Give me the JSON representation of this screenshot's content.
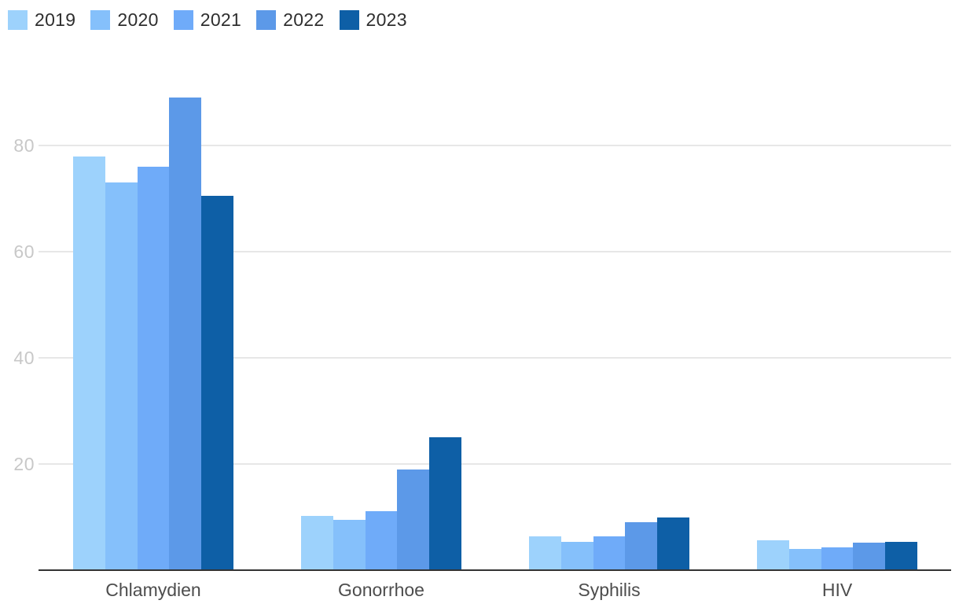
{
  "chart_data": {
    "type": "bar",
    "title": "",
    "categories": [
      "Chlamydien",
      "Gonorrhoe",
      "Syphilis",
      "HIV"
    ],
    "series": [
      {
        "name": "2019",
        "color": "#9DD2FC",
        "values": [
          78,
          10.2,
          6.4,
          5.6
        ]
      },
      {
        "name": "2020",
        "color": "#85C0FB",
        "values": [
          73,
          9.5,
          5.3,
          4.0
        ]
      },
      {
        "name": "2021",
        "color": "#6FABF9",
        "values": [
          76,
          11.1,
          6.3,
          4.3
        ]
      },
      {
        "name": "2022",
        "color": "#5C99E8",
        "values": [
          89,
          19.0,
          9.0,
          5.2
        ]
      },
      {
        "name": "2023",
        "color": "#0E5FA6",
        "values": [
          70.5,
          25.0,
          9.9,
          5.4
        ]
      }
    ],
    "yticks": [
      20,
      40,
      60,
      80
    ],
    "ylim": [
      0,
      100
    ],
    "xlabel": "",
    "ylabel": "",
    "grid": true,
    "legend_position": "top-left"
  },
  "colors": {
    "background": "#FFFFFF",
    "gridline": "#E7E7E7",
    "axis_line": "#333333",
    "ytick_text": "#C8C8C8",
    "category_text": "#4D4D4D",
    "legend_text": "#2E2E2E"
  }
}
